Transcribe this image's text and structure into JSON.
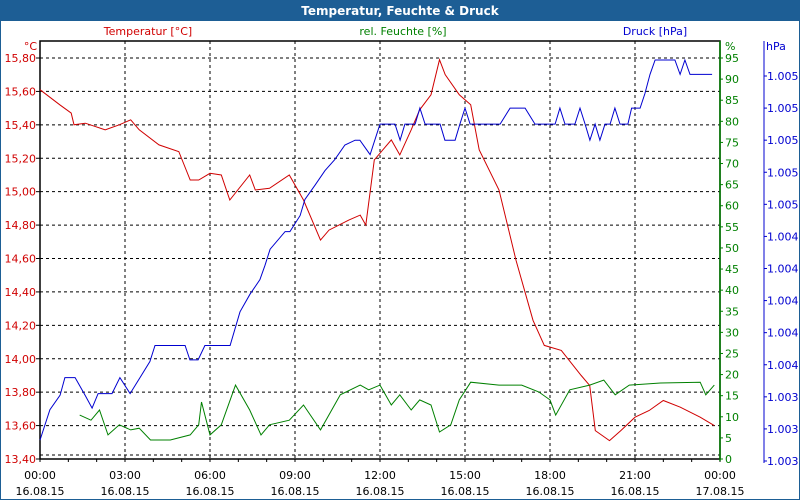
{
  "window": {
    "title": "Temperatur, Feuchte & Druck"
  },
  "chart_data": {
    "type": "line",
    "title": "Temperatur, Feuchte & Druck",
    "x_unit": "hours since 16.08.15 00:00",
    "xlim": [
      0,
      24
    ],
    "x_ticks": [
      {
        "h": 0,
        "time": "00:00",
        "date": "16.08.15"
      },
      {
        "h": 3,
        "time": "03:00",
        "date": "16.08.15"
      },
      {
        "h": 6,
        "time": "06:00",
        "date": "16.08.15"
      },
      {
        "h": 9,
        "time": "09:00",
        "date": "16.08.15"
      },
      {
        "h": 12,
        "time": "12:00",
        "date": "16.08.15"
      },
      {
        "h": 15,
        "time": "15:00",
        "date": "16.08.15"
      },
      {
        "h": 18,
        "time": "18:00",
        "date": "16.08.15"
      },
      {
        "h": 21,
        "time": "21:00",
        "date": "16.08.15"
      },
      {
        "h": 24,
        "time": "00:00",
        "date": "17.08.15"
      }
    ],
    "grid": true,
    "axes": {
      "temperature": {
        "unit": "°C",
        "ylim": [
          13.4,
          15.8
        ],
        "ticks": [
          "13,40",
          "13,60",
          "13,80",
          "14,00",
          "14,20",
          "14,40",
          "14,60",
          "14,80",
          "15,00",
          "15,20",
          "15,40",
          "15,60",
          "15,80"
        ],
        "color": "#d00000",
        "position": "left"
      },
      "humidity": {
        "unit": "%",
        "ylim": [
          0,
          95
        ],
        "ticks": [
          "0",
          "5",
          "10",
          "15",
          "20",
          "25",
          "30",
          "35",
          "40",
          "45",
          "50",
          "55",
          "60",
          "65",
          "70",
          "75",
          "80",
          "85",
          "90",
          "95"
        ],
        "color": "#008000",
        "position": "right"
      },
      "pressure": {
        "unit": "hPa",
        "ylim": [
          1.00295,
          1.00535
        ],
        "ticks": [
          "1.003",
          "1.003",
          "1.003",
          "1.004",
          "1.004",
          "1.004",
          "1.004",
          "1.004",
          "1.005",
          "1.005",
          "1.005",
          "1.005",
          "1.005"
        ],
        "color": "#0000d0",
        "position": "far-right"
      }
    },
    "series": [
      {
        "name": "Temperatur [°C]",
        "axis": "temperature",
        "color": "#d00000",
        "points": [
          [
            0,
            15.61
          ],
          [
            0.7,
            15.52
          ],
          [
            1.1,
            15.47
          ],
          [
            1.2,
            15.4
          ],
          [
            1.6,
            15.41
          ],
          [
            2.3,
            15.37
          ],
          [
            2.8,
            15.4
          ],
          [
            3.2,
            15.43
          ],
          [
            3.5,
            15.37
          ],
          [
            4.2,
            15.28
          ],
          [
            4.9,
            15.24
          ],
          [
            5.3,
            15.07
          ],
          [
            5.6,
            15.07
          ],
          [
            6.0,
            15.11
          ],
          [
            6.4,
            15.1
          ],
          [
            6.7,
            14.95
          ],
          [
            7.4,
            15.1
          ],
          [
            7.6,
            15.01
          ],
          [
            8.1,
            15.02
          ],
          [
            8.8,
            15.1
          ],
          [
            9.3,
            14.95
          ],
          [
            9.9,
            14.71
          ],
          [
            10.2,
            14.77
          ],
          [
            10.9,
            14.83
          ],
          [
            11.3,
            14.86
          ],
          [
            11.5,
            14.8
          ],
          [
            11.8,
            15.19
          ],
          [
            12.4,
            15.31
          ],
          [
            12.7,
            15.22
          ],
          [
            13.1,
            15.37
          ],
          [
            13.4,
            15.49
          ],
          [
            13.8,
            15.58
          ],
          [
            14.1,
            15.79
          ],
          [
            14.3,
            15.7
          ],
          [
            14.8,
            15.58
          ],
          [
            15.2,
            15.52
          ],
          [
            15.5,
            15.25
          ],
          [
            16.2,
            15.01
          ],
          [
            16.8,
            14.59
          ],
          [
            17.4,
            14.23
          ],
          [
            17.8,
            14.08
          ],
          [
            18.4,
            14.05
          ],
          [
            19.1,
            13.9
          ],
          [
            19.4,
            13.84
          ],
          [
            19.6,
            13.57
          ],
          [
            20.1,
            13.51
          ],
          [
            20.5,
            13.57
          ],
          [
            21.0,
            13.65
          ],
          [
            21.5,
            13.69
          ],
          [
            22.0,
            13.75
          ],
          [
            22.6,
            13.71
          ],
          [
            23.3,
            13.65
          ],
          [
            23.8,
            13.6
          ]
        ]
      },
      {
        "name": "rel. Feuchte [%]",
        "axis": "humidity",
        "color": "#008000",
        "points": [
          [
            1.4,
            10.4
          ],
          [
            1.8,
            9.2
          ],
          [
            2.1,
            11.6
          ],
          [
            2.4,
            5.7
          ],
          [
            2.8,
            8.1
          ],
          [
            3.2,
            6.9
          ],
          [
            3.5,
            7.3
          ],
          [
            3.9,
            4.5
          ],
          [
            4.6,
            4.5
          ],
          [
            5.3,
            5.7
          ],
          [
            5.6,
            8.1
          ],
          [
            5.7,
            13.5
          ],
          [
            6.0,
            5.7
          ],
          [
            6.4,
            8.1
          ],
          [
            6.9,
            17.5
          ],
          [
            7.4,
            11.6
          ],
          [
            7.8,
            5.7
          ],
          [
            8.1,
            8.1
          ],
          [
            8.8,
            9.2
          ],
          [
            9.3,
            12.8
          ],
          [
            9.9,
            6.9
          ],
          [
            10.6,
            15.2
          ],
          [
            11.3,
            17.5
          ],
          [
            11.6,
            16.4
          ],
          [
            12.0,
            17.5
          ],
          [
            12.4,
            12.8
          ],
          [
            12.7,
            15.2
          ],
          [
            13.1,
            11.6
          ],
          [
            13.4,
            14.0
          ],
          [
            13.8,
            12.8
          ],
          [
            14.1,
            6.4
          ],
          [
            14.5,
            8.1
          ],
          [
            14.8,
            14.0
          ],
          [
            15.2,
            18.2
          ],
          [
            16.2,
            17.5
          ],
          [
            17.0,
            17.5
          ],
          [
            17.6,
            15.9
          ],
          [
            18.0,
            14.0
          ],
          [
            18.2,
            10.4
          ],
          [
            18.7,
            16.4
          ],
          [
            19.4,
            17.5
          ],
          [
            19.9,
            18.7
          ],
          [
            20.3,
            15.2
          ],
          [
            20.8,
            17.5
          ],
          [
            21.9,
            18.0
          ],
          [
            23.3,
            18.2
          ],
          [
            23.5,
            15.2
          ],
          [
            23.8,
            17.5
          ]
        ]
      },
      {
        "name": "Druck [hPa]",
        "axis": "pressure",
        "color": "#0000d0",
        "points": [
          [
            0,
            1.00308
          ],
          [
            0.35,
            1.00327
          ],
          [
            0.71,
            1.00336
          ],
          [
            0.88,
            1.00347
          ],
          [
            1.24,
            1.00347
          ],
          [
            1.59,
            1.00336
          ],
          [
            1.84,
            1.00328
          ],
          [
            2.05,
            1.00337
          ],
          [
            2.54,
            1.00337
          ],
          [
            2.82,
            1.00347
          ],
          [
            3.18,
            1.00337
          ],
          [
            3.53,
            1.00347
          ],
          [
            3.88,
            1.00357
          ],
          [
            4.06,
            1.00367
          ],
          [
            5.12,
            1.00367
          ],
          [
            5.29,
            1.00358
          ],
          [
            5.58,
            1.00358
          ],
          [
            5.82,
            1.00367
          ],
          [
            6.71,
            1.00367
          ],
          [
            7.06,
            1.00388
          ],
          [
            7.41,
            1.00399
          ],
          [
            7.76,
            1.00408
          ],
          [
            7.94,
            1.00417
          ],
          [
            8.12,
            1.00427
          ],
          [
            8.65,
            1.00438
          ],
          [
            8.82,
            1.00438
          ],
          [
            9.18,
            1.00448
          ],
          [
            9.35,
            1.00458
          ],
          [
            9.71,
            1.00467
          ],
          [
            10.06,
            1.00476
          ],
          [
            10.41,
            1.00483
          ],
          [
            10.76,
            1.00492
          ],
          [
            11.12,
            1.00495
          ],
          [
            11.29,
            1.00495
          ],
          [
            11.65,
            1.00486
          ],
          [
            12.0,
            1.00505
          ],
          [
            12.53,
            1.00505
          ],
          [
            12.71,
            1.00495
          ],
          [
            12.88,
            1.00505
          ],
          [
            13.24,
            1.00505
          ],
          [
            13.41,
            1.00515
          ],
          [
            13.59,
            1.00505
          ],
          [
            14.12,
            1.00505
          ],
          [
            14.29,
            1.00495
          ],
          [
            14.65,
            1.00495
          ],
          [
            14.82,
            1.00505
          ],
          [
            15.0,
            1.00515
          ],
          [
            15.18,
            1.00505
          ],
          [
            16.24,
            1.00505
          ],
          [
            16.59,
            1.00515
          ],
          [
            17.12,
            1.00515
          ],
          [
            17.47,
            1.00505
          ],
          [
            18.18,
            1.00505
          ],
          [
            18.35,
            1.00515
          ],
          [
            18.53,
            1.00505
          ],
          [
            18.88,
            1.00505
          ],
          [
            19.06,
            1.00515
          ],
          [
            19.24,
            1.00505
          ],
          [
            19.41,
            1.00495
          ],
          [
            19.59,
            1.00505
          ],
          [
            19.76,
            1.00495
          ],
          [
            19.94,
            1.00505
          ],
          [
            20.12,
            1.00505
          ],
          [
            20.29,
            1.00515
          ],
          [
            20.47,
            1.00505
          ],
          [
            20.75,
            1.00505
          ],
          [
            20.88,
            1.00515
          ],
          [
            21.18,
            1.00515
          ],
          [
            21.35,
            1.00524
          ],
          [
            21.53,
            1.00536
          ],
          [
            21.71,
            1.00545
          ],
          [
            22.41,
            1.00545
          ],
          [
            22.59,
            1.00536
          ],
          [
            22.76,
            1.00545
          ],
          [
            22.94,
            1.00536
          ],
          [
            23.72,
            1.00536
          ]
        ]
      }
    ]
  }
}
